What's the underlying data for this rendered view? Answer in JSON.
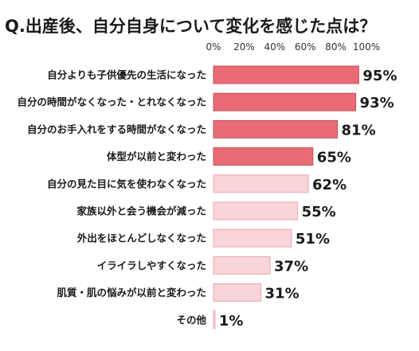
{
  "chart_data": {
    "type": "bar",
    "orientation": "horizontal",
    "title": "Q.出産後、自分自身について変化を感じた点は？",
    "xlabel": "",
    "ylabel": "",
    "xlim": [
      0,
      100
    ],
    "tick_labels": [
      "0%",
      "20%",
      "40%",
      "60%",
      "80%",
      "100%"
    ],
    "grid": false,
    "categories": [
      "自分よりも子供優先の生活になった",
      "自分の時間がなくなった・とれなくなった",
      "自分のお手入れをする時間がなくなった",
      "体型が以前と変わった",
      "自分の見た目に気を使わなくなった",
      "家族以外と会う機会が減った",
      "外出をほとんどしなくなった",
      "イライラしやすくなった",
      "肌質・肌の悩みが以前と変わった",
      "その他"
    ],
    "values": [
      95,
      93,
      81,
      65,
      62,
      55,
      51,
      37,
      31,
      1
    ],
    "value_labels": [
      "95%",
      "93%",
      "81%",
      "65%",
      "62%",
      "55%",
      "51%",
      "37%",
      "31%",
      "1%"
    ],
    "highlight_count": 4,
    "colors": {
      "highlight_fill": "#e86b76",
      "highlight_stroke": "#c9505c",
      "normal_fill": "#f9d4d8",
      "normal_stroke": "#e8a7af"
    }
  }
}
